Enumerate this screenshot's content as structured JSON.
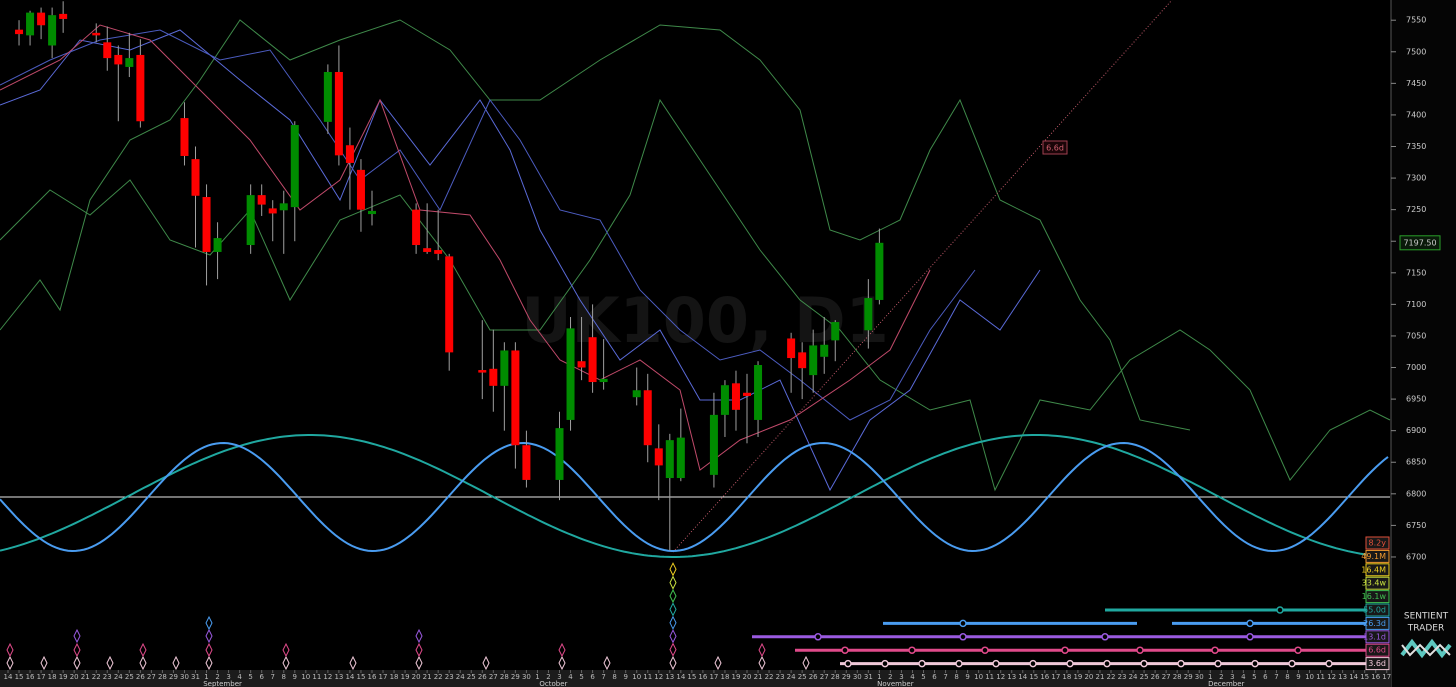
{
  "chart_data": {
    "type": "candlestick",
    "watermark": "UK100, D1",
    "x": [
      "14",
      "15",
      "16",
      "17",
      "18",
      "19",
      "20",
      "21",
      "22",
      "23",
      "24",
      "25",
      "26",
      "27",
      "28",
      "29",
      "30",
      "31",
      "1",
      "2",
      "3",
      "4",
      "5",
      "6",
      "7",
      "8",
      "9",
      "10",
      "11",
      "12",
      "13",
      "14",
      "15",
      "16",
      "17",
      "18",
      "19",
      "20",
      "21",
      "22",
      "23",
      "24",
      "25",
      "26",
      "27",
      "28",
      "29",
      "30",
      "1",
      "2",
      "3",
      "4",
      "5",
      "6",
      "7",
      "8",
      "9",
      "10",
      "11",
      "12",
      "13",
      "14",
      "15",
      "16",
      "17",
      "18",
      "19",
      "20",
      "21",
      "22",
      "23",
      "24",
      "25",
      "26",
      "27",
      "28",
      "29",
      "30",
      "31",
      "1",
      "2",
      "3",
      "4",
      "5",
      "6",
      "7",
      "8",
      "9",
      "10",
      "11",
      "12",
      "13",
      "14",
      "15",
      "16",
      "17",
      "18",
      "19",
      "20",
      "21",
      "22",
      "23",
      "24",
      "25",
      "26",
      "27",
      "28",
      "29",
      "30",
      "1",
      "2",
      "3",
      "4",
      "5",
      "6",
      "7",
      "8",
      "9",
      "10",
      "11",
      "12",
      "13",
      "14",
      "15",
      "16",
      "17"
    ],
    "month_labels": [
      "September",
      "October",
      "November",
      "December"
    ],
    "open": [
      null,
      7535,
      7526,
      7562,
      7510,
      7560,
      null,
      null,
      7530,
      7515,
      7495,
      7476,
      7495,
      null,
      null,
      null,
      7395,
      7330,
      7270,
      7183,
      null,
      null,
      7194,
      7273,
      7252,
      7249,
      7254,
      null,
      null,
      7389,
      7468,
      7352,
      7313,
      7243,
      null,
      null,
      null,
      7250,
      7189,
      7186,
      7176,
      null,
      null,
      6996,
      6998,
      6971,
      7027,
      6877,
      null,
      null,
      6822,
      6917,
      7010,
      7048,
      6977,
      null,
      null,
      6953,
      6964,
      6872,
      6825,
      6825,
      null,
      null,
      6830,
      6925,
      6975,
      6960,
      6917,
      null,
      null,
      7046,
      7024,
      6988,
      7017,
      7043,
      null,
      null,
      7059,
      7107,
      null,
      null,
      null,
      null,
      null,
      null,
      null,
      null,
      null,
      null,
      null,
      null,
      null,
      null,
      null,
      null,
      null,
      null,
      null,
      null,
      null,
      null,
      null,
      null,
      null,
      null,
      null,
      null,
      null,
      null,
      null,
      null,
      null,
      null,
      null,
      null,
      null,
      null,
      null,
      null,
      null,
      null,
      null,
      null,
      null,
      null
    ],
    "high": [
      null,
      7550,
      7565,
      7570,
      7570,
      7580,
      null,
      null,
      7545,
      7540,
      7510,
      7530,
      7520,
      null,
      null,
      null,
      7420,
      7350,
      7290,
      7230,
      null,
      null,
      7290,
      7290,
      7265,
      7280,
      7390,
      null,
      null,
      7480,
      7510,
      7380,
      7330,
      7280,
      null,
      null,
      null,
      7260,
      7260,
      7250,
      7180,
      null,
      null,
      7075,
      7060,
      7040,
      7040,
      6900,
      null,
      null,
      6930,
      7080,
      7080,
      7100,
      7045,
      null,
      null,
      7000,
      6990,
      6910,
      6895,
      6935,
      null,
      null,
      6960,
      6980,
      6995,
      6990,
      7010,
      null,
      null,
      7055,
      7040,
      7060,
      7080,
      7075,
      null,
      null,
      7140,
      7220,
      null,
      null,
      null,
      null,
      null,
      null,
      null,
      null,
      null,
      null,
      null,
      null,
      null,
      null,
      null,
      null,
      null,
      null,
      null,
      null,
      null,
      null,
      null,
      null,
      null,
      null,
      null,
      null,
      null,
      null,
      null,
      null,
      null,
      null,
      null,
      null,
      null,
      null,
      null,
      null,
      null,
      null,
      null,
      null,
      null,
      null
    ],
    "low": [
      null,
      7510,
      7510,
      7520,
      7490,
      7530,
      null,
      null,
      7515,
      7470,
      7390,
      7460,
      7380,
      null,
      null,
      null,
      7320,
      7190,
      7130,
      7140,
      null,
      null,
      7180,
      7240,
      7200,
      7180,
      7200,
      null,
      null,
      7370,
      7320,
      7250,
      7215,
      7225,
      null,
      null,
      null,
      7180,
      7180,
      7170,
      6995,
      null,
      null,
      6950,
      6930,
      6900,
      6840,
      6810,
      null,
      null,
      6790,
      6900,
      6980,
      6960,
      6965,
      null,
      null,
      6940,
      6850,
      6790,
      6710,
      6820,
      null,
      null,
      6810,
      6890,
      6900,
      6880,
      6890,
      null,
      null,
      6960,
      6950,
      6960,
      6990,
      7010,
      null,
      null,
      7030,
      7100,
      null,
      null,
      null,
      null,
      null,
      null,
      null,
      null,
      null,
      null,
      null,
      null,
      null,
      null,
      null,
      null,
      null,
      null,
      null,
      null,
      null,
      null,
      null,
      null,
      null,
      null,
      null,
      null,
      null,
      null,
      null,
      null,
      null,
      null,
      null,
      null,
      null,
      null,
      null,
      null,
      null,
      null,
      null,
      null,
      null,
      null
    ],
    "close": [
      null,
      7528,
      7562,
      7542,
      7558,
      7552,
      null,
      null,
      7526,
      7490,
      7480,
      7490,
      7390,
      null,
      null,
      null,
      7335,
      7272,
      7183,
      7205,
      null,
      null,
      7273,
      7258,
      7244,
      7260,
      7384,
      null,
      null,
      7468,
      7336,
      7324,
      7250,
      7248,
      null,
      null,
      null,
      7194,
      7183,
      7180,
      7024,
      null,
      null,
      6992,
      6971,
      7027,
      6877,
      6822,
      null,
      null,
      6904,
      7062,
      7000,
      6977,
      6982,
      null,
      null,
      6964,
      6877,
      6845,
      6885,
      6889,
      null,
      null,
      6925,
      6972,
      6933,
      6955,
      7004,
      null,
      null,
      7015,
      6999,
      7035,
      7036,
      7072,
      null,
      null,
      7110,
      7197.5,
      null,
      null,
      null,
      null,
      null,
      null,
      null,
      null,
      null,
      null,
      null,
      null,
      null,
      null,
      null,
      null,
      null,
      null,
      null,
      null,
      null,
      null,
      null,
      null,
      null,
      null,
      null,
      null,
      null,
      null,
      null,
      null,
      null,
      null,
      null,
      null,
      null,
      null,
      null,
      null,
      null,
      null,
      null,
      null,
      null,
      null
    ],
    "up_color": "#008c00",
    "down_color": "#ff0000",
    "wick_color": "#a0a0a0",
    "ylim": [
      6521,
      7582
    ],
    "yticks": [
      6700,
      6750,
      6800,
      6850,
      6900,
      6950,
      7000,
      7050,
      7100,
      7150,
      7200,
      7250,
      7300,
      7350,
      7400,
      7450,
      7500,
      7550
    ],
    "last_price": {
      "value": 7197.5,
      "label": "7197.50"
    },
    "annotation": "6.6d",
    "cycles": [
      {
        "name": "8.2y",
        "color": "#e0503a"
      },
      {
        "name": "49.1M",
        "color": "#f09a30"
      },
      {
        "name": "16.4M",
        "color": "#f0d020"
      },
      {
        "name": "33.4w",
        "color": "#c8e040"
      },
      {
        "name": "16.1w",
        "color": "#40c050"
      },
      {
        "name": "55.0d",
        "color": "#20a8a0"
      },
      {
        "name": "26.3d",
        "color": "#4a9cf0"
      },
      {
        "name": "13.1d",
        "color": "#9a5ae0"
      },
      {
        "name": "6.6d",
        "color": "#e04a8a"
      },
      {
        "name": "3.6d",
        "color": "#f0c8d8"
      }
    ],
    "logo": [
      "SENTIENT",
      "TRADER"
    ]
  }
}
